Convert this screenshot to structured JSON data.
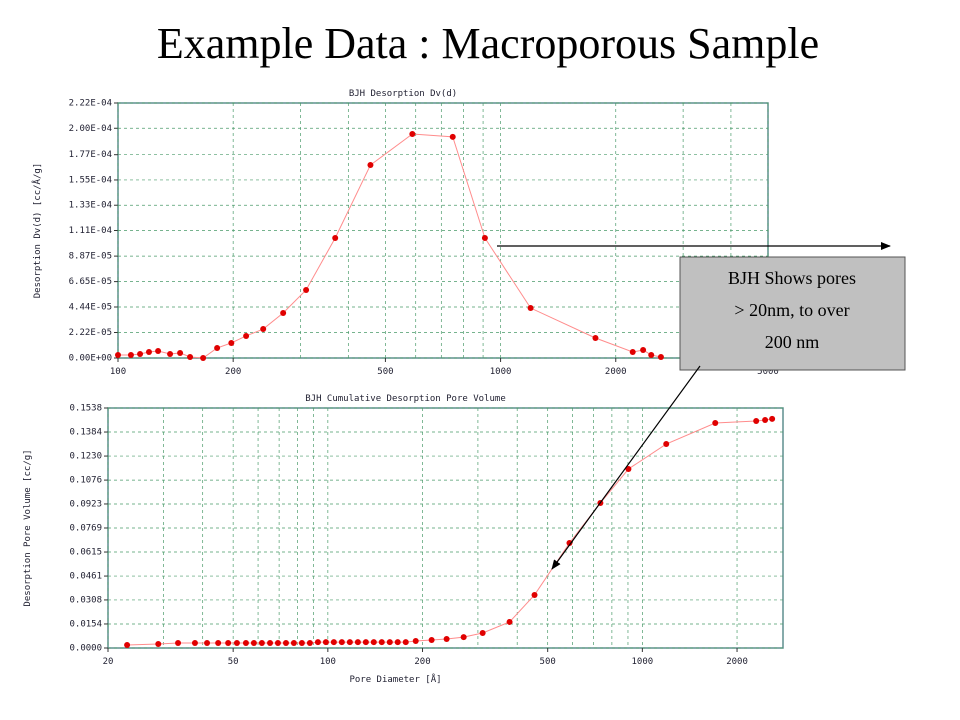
{
  "title": "Example Data : Macroporous Sample",
  "callout": [
    "BJH Shows pores",
    "> 20nm, to over",
    "200 nm"
  ],
  "chart_data": [
    {
      "type": "line",
      "title": "BJH Desorption Dv(d)",
      "y_label": "Desorption Dv(d) [cc/Å/g]",
      "x_scale": "log",
      "grid": true,
      "xlim": [
        100,
        5000
      ],
      "xticks": [
        100,
        200,
        500,
        1000,
        2000,
        5000
      ],
      "ylim": [
        0,
        0.000222
      ],
      "yticks": [
        {
          "value": 0,
          "label": "0.00E+00"
        },
        {
          "value": 2.22e-05,
          "label": "2.22E-05"
        },
        {
          "value": 4.44e-05,
          "label": "4.44E-05"
        },
        {
          "value": 6.65e-05,
          "label": "6.65E-05"
        },
        {
          "value": 8.87e-05,
          "label": "8.87E-05"
        },
        {
          "value": 0.000111,
          "label": "1.11E-04"
        },
        {
          "value": 0.000133,
          "label": "1.33E-04"
        },
        {
          "value": 0.000155,
          "label": "1.55E-04"
        },
        {
          "value": 0.000177,
          "label": "1.77E-04"
        },
        {
          "value": 0.0002,
          "label": "2.00E-04"
        },
        {
          "value": 0.000222,
          "label": "2.22E-04"
        }
      ],
      "x": [
        100,
        108.1,
        114.2,
        120.5,
        127.3,
        136.8,
        145.3,
        154.3,
        166.9,
        181.6,
        197.8,
        216.2,
        239.6,
        270.2,
        310.2,
        369.6,
        456.9,
        588,
        749.8,
        910,
        1198,
        1770,
        2215,
        2358,
        2476,
        2625
      ],
      "series": [
        {
          "color": "#e00000",
          "line_color": "#ff8c8c",
          "values": [
            2.6e-06,
            2.6e-06,
            3.5e-06,
            5.2e-06,
            6.1e-06,
            3.5e-06,
            4.4e-06,
            9e-07,
            0,
            8.7e-06,
            1.31e-05,
            1.92e-05,
            2.52e-05,
            3.92e-05,
            5.92e-05,
            0.0001045,
            0.000168,
            0.000195,
            0.0001925,
            0.0001045,
            4.35e-05,
            1.74e-05,
            5.2e-06,
            7e-06,
            2.6e-06,
            9e-07
          ]
        }
      ]
    },
    {
      "type": "line",
      "title": "BJH Cumulative Desorption Pore Volume",
      "x_label": "Pore Diameter [Å]",
      "y_label": "Desorption Pore Volume [cc/g]",
      "x_scale": "log",
      "grid": true,
      "xlim": [
        20,
        2800
      ],
      "xticks": [
        20,
        50,
        100,
        200,
        500,
        1000,
        2000
      ],
      "ylim": [
        0,
        0.1538
      ],
      "yticks": [
        {
          "value": 0,
          "label": "0.0000"
        },
        0.0154,
        0.0308,
        0.0461,
        0.0615,
        0.0769,
        0.0923,
        0.1076,
        {
          "value": 0.123,
          "label": "0.1230"
        },
        0.1384,
        0.1538
      ],
      "x": [
        23.0,
        28.9,
        33.4,
        37.8,
        41.3,
        44.8,
        48.2,
        51.4,
        54.9,
        58.2,
        61.7,
        65.5,
        69.4,
        73.6,
        78.0,
        82.7,
        87.7,
        93.0,
        98.6,
        104.5,
        110.8,
        117.5,
        124.6,
        132.1,
        140.0,
        148.4,
        157.4,
        166.8,
        176.9,
        190.3,
        213.8,
        238.6,
        270.3,
        310.6,
        378.3,
        454.1,
        586.5,
        735.4,
        903,
        1191,
        1705,
        2301,
        2456,
        2586
      ],
      "series": [
        {
          "color": "#e00000",
          "line_color": "#ff8c8c",
          "values": [
            0.0019,
            0.0026,
            0.0032,
            0.0032,
            0.0032,
            0.0032,
            0.0032,
            0.0032,
            0.0032,
            0.0032,
            0.0032,
            0.0032,
            0.0032,
            0.0032,
            0.0032,
            0.0032,
            0.0032,
            0.0038,
            0.0038,
            0.0038,
            0.0038,
            0.0038,
            0.0038,
            0.0038,
            0.0038,
            0.0038,
            0.0038,
            0.0038,
            0.0038,
            0.0045,
            0.0051,
            0.0058,
            0.007,
            0.0096,
            0.0167,
            0.034,
            0.0673,
            0.0929,
            0.1147,
            0.1307,
            0.1442,
            0.1455,
            0.1461,
            0.1468
          ]
        }
      ]
    }
  ]
}
